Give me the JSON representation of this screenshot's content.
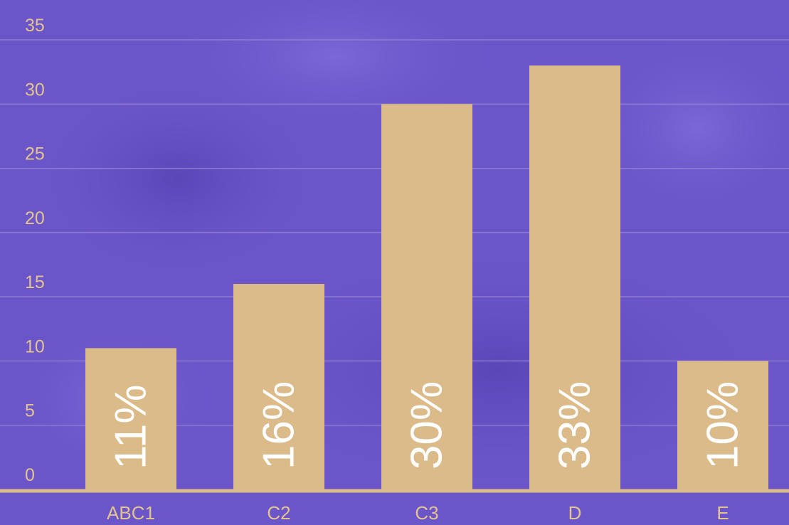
{
  "chart_data": {
    "type": "bar",
    "categories": [
      "ABC1",
      "C2",
      "C3",
      "D",
      "E"
    ],
    "values": [
      11,
      16,
      30,
      33,
      10
    ],
    "data_labels": [
      "11%",
      "16%",
      "30%",
      "33%",
      "10%"
    ],
    "yticks": [
      0,
      5,
      10,
      15,
      20,
      25,
      30,
      35
    ],
    "ylim": [
      0,
      35
    ],
    "grid": true,
    "legend": "none"
  },
  "colors": {
    "background": "#6a55c9",
    "bar": "#dcbb8a",
    "tick_text": "#e3c48e",
    "data_label_text": "#ffffff",
    "grid": "#9b86d6",
    "axis": "#dcbb8a"
  }
}
